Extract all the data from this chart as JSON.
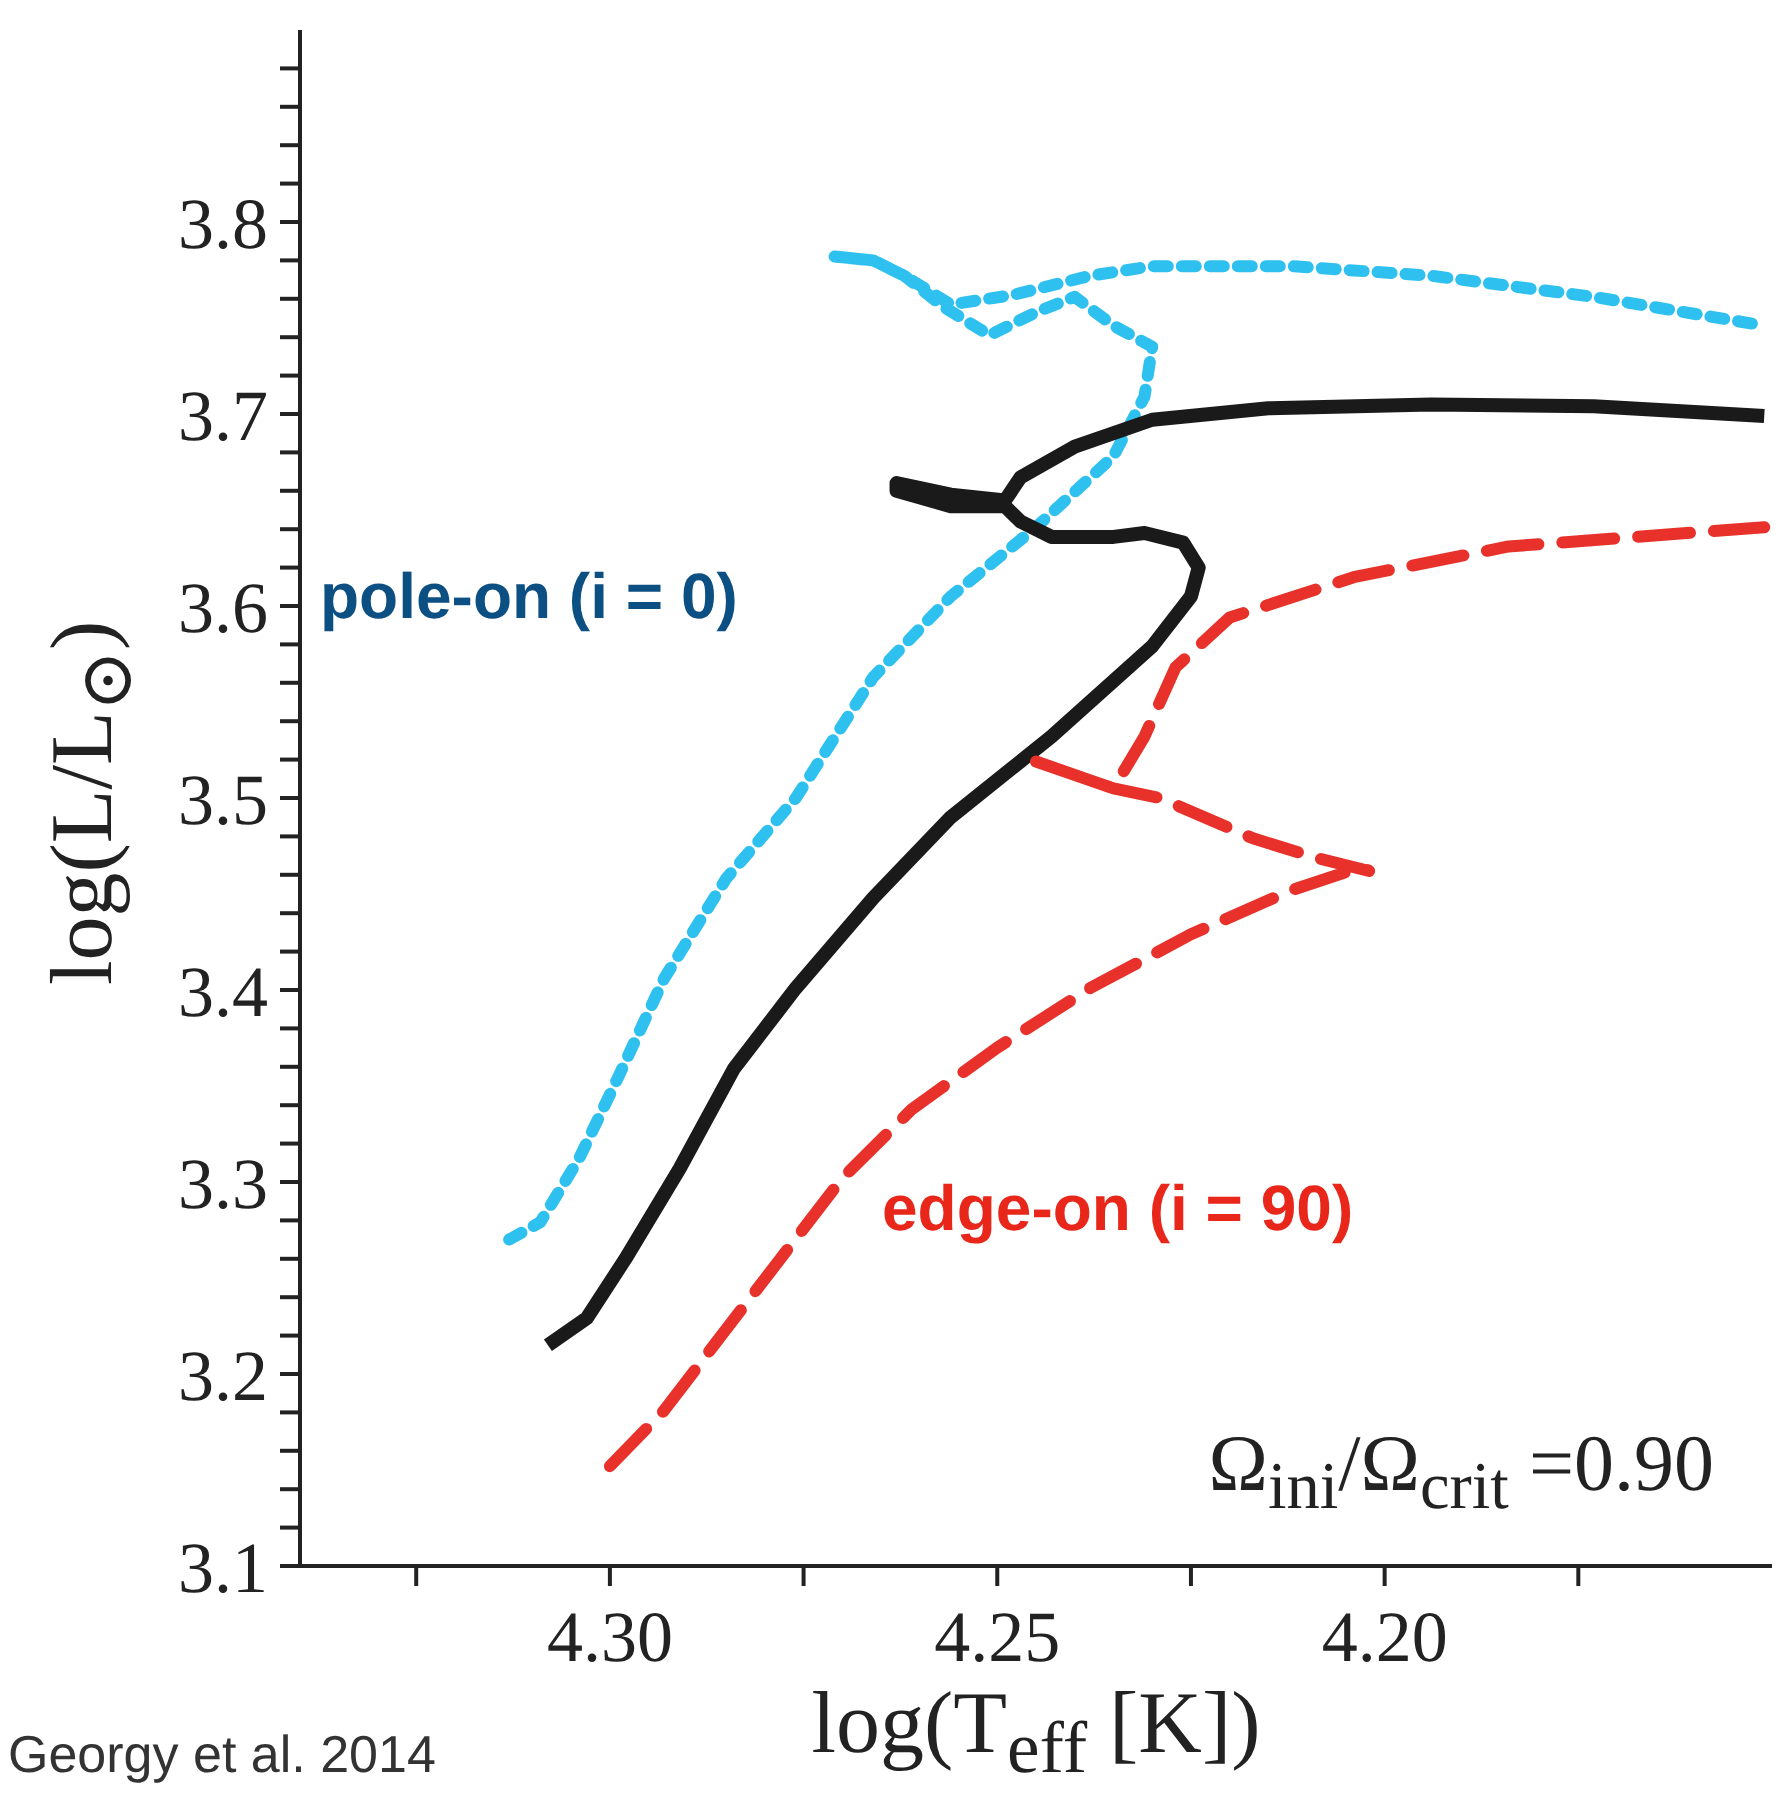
{
  "chart_data": {
    "type": "line",
    "xlabel": "log(T$_{eff}$ [K])",
    "ylabel": "log(L/L$_{⊙}$)",
    "xlim": [
      4.34,
      4.15
    ],
    "ylim": [
      3.1,
      3.9
    ],
    "xticks": [
      {
        "value": 4.325,
        "label": null
      },
      {
        "value": 4.3,
        "label": "4.30"
      },
      {
        "value": 4.275,
        "label": null
      },
      4.25,
      {
        "value": 4.225,
        "label": null
      },
      {
        "value": 4.2,
        "label": "4.20"
      },
      {
        "value": 4.175,
        "label": null
      }
    ],
    "yticks": [
      3.1,
      {
        "value": 3.12,
        "label": null
      },
      {
        "value": 3.14,
        "label": null
      },
      {
        "value": 3.16,
        "label": null
      },
      {
        "value": 3.18,
        "label": null
      },
      3.2,
      {
        "value": 3.22,
        "label": null
      },
      {
        "value": 3.24,
        "label": null
      },
      {
        "value": 3.26,
        "label": null
      },
      {
        "value": 3.28,
        "label": null
      },
      3.3,
      {
        "value": 3.32,
        "label": null
      },
      {
        "value": 3.34,
        "label": null
      },
      {
        "value": 3.36,
        "label": null
      },
      {
        "value": 3.38,
        "label": null
      },
      3.4,
      {
        "value": 3.42,
        "label": null
      },
      {
        "value": 3.44,
        "label": null
      },
      {
        "value": 3.46,
        "label": null
      },
      {
        "value": 3.48,
        "label": null
      },
      3.5,
      {
        "value": 3.52,
        "label": null
      },
      {
        "value": 3.54,
        "label": null
      },
      {
        "value": 3.56,
        "label": null
      },
      {
        "value": 3.58,
        "label": null
      },
      3.6,
      {
        "value": 3.62,
        "label": null
      },
      {
        "value": 3.64,
        "label": null
      },
      {
        "value": 3.66,
        "label": null
      },
      {
        "value": 3.68,
        "label": null
      },
      3.7,
      {
        "value": 3.72,
        "label": null
      },
      {
        "value": 3.74,
        "label": null
      },
      {
        "value": 3.76,
        "label": null
      },
      {
        "value": 3.78,
        "label": null
      },
      3.8,
      {
        "value": 3.82,
        "label": null
      },
      {
        "value": 3.84,
        "label": null
      },
      {
        "value": 3.86,
        "label": null
      },
      {
        "value": 3.88,
        "label": null
      }
    ],
    "marker": "none",
    "series": [
      {
        "color": "#2ec0ef",
        "line_style": "dotted",
        "x": [
          4.313,
          4.309,
          4.304,
          4.299,
          4.293,
          4.285,
          4.276,
          4.266,
          4.256,
          4.245,
          4.235,
          4.231,
          4.23,
          4.235,
          4.24,
          4.245,
          4.251,
          4.257,
          4.262,
          4.266,
          4.271,
          4.266,
          4.262,
          4.256,
          4.248,
          4.238,
          4.23,
          4.212,
          4.194,
          4.173,
          4.151
        ],
        "values": [
          3.27,
          3.279,
          3.312,
          3.354,
          3.406,
          3.458,
          3.5,
          3.563,
          3.605,
          3.641,
          3.678,
          3.709,
          3.735,
          3.746,
          3.761,
          3.753,
          3.741,
          3.756,
          3.772,
          3.78,
          3.782,
          3.78,
          3.772,
          3.757,
          3.762,
          3.772,
          3.777,
          3.777,
          3.772,
          3.761,
          3.746
        ]
      },
      {
        "color": "#1a1a1a",
        "line_style": "solid",
        "x": [
          4.308,
          4.303,
          4.298,
          4.291,
          4.284,
          4.276,
          4.266,
          4.256,
          4.243,
          4.23,
          4.225,
          4.224,
          4.226,
          4.231,
          4.235,
          4.243,
          4.247,
          4.249,
          4.256,
          4.263,
          4.263,
          4.256,
          4.249,
          4.247,
          4.24,
          4.23,
          4.215,
          4.194,
          4.173,
          4.151
        ],
        "values": [
          3.215,
          3.229,
          3.26,
          3.307,
          3.359,
          3.401,
          3.448,
          3.49,
          3.532,
          3.579,
          3.605,
          3.62,
          3.633,
          3.638,
          3.636,
          3.636,
          3.644,
          3.652,
          3.652,
          3.66,
          3.664,
          3.658,
          3.655,
          3.667,
          3.683,
          3.697,
          3.703,
          3.705,
          3.704,
          3.699
        ]
      },
      {
        "color": "#e8312a",
        "line_style": "dashed",
        "x": [
          4.3,
          4.293,
          4.286,
          4.278,
          4.27,
          4.261,
          4.25,
          4.238,
          4.225,
          4.212,
          4.203,
          4.202,
          4.209,
          4.217,
          4.229,
          4.235,
          4.245,
          4.235,
          4.231,
          4.227,
          4.22,
          4.204,
          4.184,
          4.151
        ],
        "values": [
          3.152,
          3.181,
          3.218,
          3.26,
          3.302,
          3.338,
          3.37,
          3.401,
          3.429,
          3.452,
          3.464,
          3.462,
          3.469,
          3.479,
          3.5,
          3.505,
          3.519,
          3.505,
          3.532,
          3.568,
          3.594,
          3.615,
          3.631,
          3.641
        ]
      }
    ],
    "annotations": [
      "pole-on (i = 0)",
      "edge-on (i = 90)",
      "Ω$_{ini}$/Ω$_{crit}$ =0.90",
      "Georgy et al. 2014"
    ]
  }
}
